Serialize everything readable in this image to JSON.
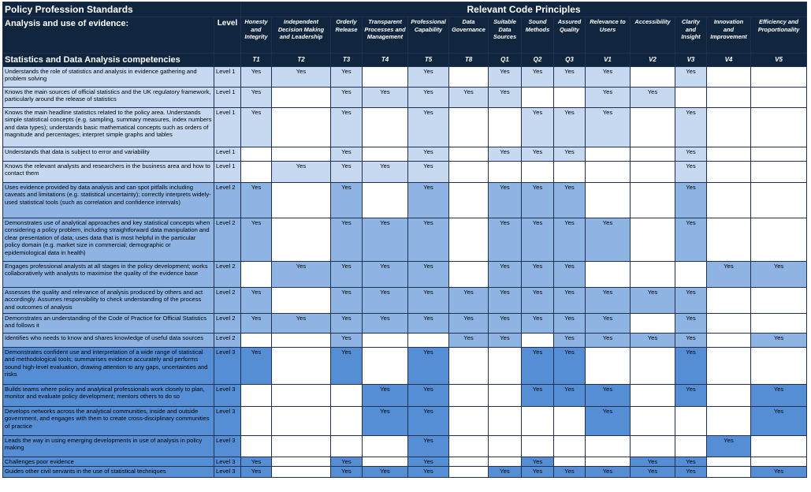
{
  "header": {
    "title": "Policy Profession Standards",
    "principles_title": "Relevant Code Principles",
    "section": "Analysis and use of evidence:",
    "level_label": "Level",
    "competency_label": "Statistics and Data Analysis competencies"
  },
  "columns": [
    {
      "name": "Honesty and Integrity",
      "code": "T1"
    },
    {
      "name": "Independent Decision Making and Leadership",
      "code": "T2"
    },
    {
      "name": "Orderly Release",
      "code": "T3"
    },
    {
      "name": "Transparent Processes and Management",
      "code": "T4"
    },
    {
      "name": "Professional Capability",
      "code": "T5"
    },
    {
      "name": "Data Governance",
      "code": "T8"
    },
    {
      "name": "Suitable Data Sources",
      "code": "Q1"
    },
    {
      "name": "Sound Methods",
      "code": "Q2"
    },
    {
      "name": "Assured Quality",
      "code": "Q3"
    },
    {
      "name": "Relevance to Users",
      "code": "V1"
    },
    {
      "name": "Accessibility",
      "code": "V2"
    },
    {
      "name": "Clarity and Insight",
      "code": "V3"
    },
    {
      "name": "Innovation and Improvement",
      "code": "V4"
    },
    {
      "name": "Efficiency and Proportionality",
      "code": "V5"
    }
  ],
  "rows": [
    {
      "text": "Understands the role of statistics and analysis in evidence gathering and problem solving",
      "level": "Level 1",
      "cells": [
        "Yes",
        "Yes",
        "Yes",
        null,
        "Yes",
        null,
        "Yes",
        "Yes",
        "Yes",
        "Yes",
        null,
        "Yes",
        null,
        null
      ]
    },
    {
      "text": "Knows the main sources of official statistics and the UK regulatory framework, particularly around the release of statistics",
      "level": "Level 1",
      "cells": [
        "Yes",
        null,
        "Yes",
        "Yes",
        "Yes",
        "Yes",
        "Yes",
        null,
        null,
        "Yes",
        "Yes",
        null,
        null,
        null
      ]
    },
    {
      "text": "Knows the main headline statistics related to the policy area. Understands simple statistical concepts (e.g. sampling, summary measures, index numbers and data types); understands basic mathematical concepts such as orders of magnitude and percentages; interpret simple graphs and tables",
      "level": "Level 1",
      "cells": [
        "Yes",
        null,
        "Yes",
        null,
        "Yes",
        null,
        null,
        "Yes",
        "Yes",
        "Yes",
        null,
        "Yes",
        null,
        null
      ]
    },
    {
      "text": "Understands that data is subject to error and variability",
      "level": "Level 1",
      "cells": [
        null,
        null,
        "Yes",
        null,
        "Yes",
        null,
        "Yes",
        "Yes",
        "Yes",
        null,
        null,
        "Yes",
        null,
        null
      ]
    },
    {
      "text": "Knows the relevant analysts and researchers in the business area and how to contact them",
      "level": "Level 1",
      "cells": [
        null,
        "Yes",
        "Yes",
        "Yes",
        "Yes",
        null,
        null,
        null,
        null,
        null,
        null,
        "Yes",
        null,
        null
      ]
    },
    {
      "text": "Uses evidence provided by data analysis and can spot pitfalls including caveats and limitations (e.g. statistical uncertainty); correctly interprets widely-used statistical tools (such as correlation and confidence intervals)",
      "level": "Level 2",
      "cells": [
        "Yes",
        null,
        "Yes",
        null,
        "Yes",
        null,
        "Yes",
        "Yes",
        "Yes",
        null,
        null,
        "Yes",
        null,
        null
      ]
    },
    {
      "text": "Demonstrates use of analytical approaches and key statistical concepts when considering a policy problem, including straightforward data manipulation and clear presentation of data; uses data that is most helpful in the particular policy domain (e.g. market size in commercial; demographic or epidemiological data in health)",
      "level": "Level 2",
      "cells": [
        "Yes",
        null,
        "Yes",
        "Yes",
        "Yes",
        null,
        "Yes",
        "Yes",
        "Yes",
        "Yes",
        null,
        "Yes",
        null,
        null
      ]
    },
    {
      "text": "Engages professional analysts at all stages in the policy development; works collaboratively with analysts to maximise the quality of the evidence base",
      "level": "Level 2",
      "cells": [
        null,
        "Yes",
        "Yes",
        "Yes",
        "Yes",
        null,
        "Yes",
        "Yes",
        "Yes",
        null,
        null,
        null,
        "Yes",
        "Yes"
      ]
    },
    {
      "text": "Assesses the quality and relevance of analysis produced by others and act accordingly. Assumes responsibility to check understanding of the process and outcomes of analysis",
      "level": "Level 2",
      "cells": [
        "Yes",
        null,
        "Yes",
        "Yes",
        "Yes",
        "Yes",
        "Yes",
        "Yes",
        "Yes",
        "Yes",
        "Yes",
        "Yes",
        null,
        null
      ]
    },
    {
      "text": "Demonstrates an understanding of the Code of Practice for Official Statistics and follows it",
      "level": "Level 2",
      "cells": [
        "Yes",
        "Yes",
        "Yes",
        "Yes",
        "Yes",
        "Yes",
        "Yes",
        "Yes",
        "Yes",
        "Yes",
        null,
        "Yes",
        null,
        null
      ]
    },
    {
      "text": "Identifies who needs to know and shares knowledge of useful data sources",
      "level": "Level 2",
      "cells": [
        null,
        null,
        "Yes",
        null,
        null,
        "Yes",
        "Yes",
        null,
        "Yes",
        "Yes",
        "Yes",
        "Yes",
        null,
        "Yes"
      ]
    },
    {
      "text": "Demonstrates confident use and interpretation of a wide range of statistical and methodological tools; summarises evidence accurately and performs sound high-level evaluation, drawing attention to any gaps, uncertainties and risks",
      "level": "Level 3",
      "cells": [
        "Yes",
        null,
        "Yes",
        null,
        "Yes",
        null,
        null,
        "Yes",
        "Yes",
        null,
        null,
        "Yes",
        null,
        null
      ]
    },
    {
      "text": "Builds teams where policy and analytical professionals work closely to plan, monitor and evaluate policy development; mentors others to do so",
      "level": "Level 3",
      "cells": [
        null,
        null,
        null,
        "Yes",
        "Yes",
        null,
        null,
        "Yes",
        "Yes",
        "Yes",
        null,
        "Yes",
        null,
        "Yes"
      ]
    },
    {
      "text": "Develops networks across the analytical communities, inside and outside government, and engages with them to create cross-disciplinary communities of practice",
      "level": "Level 3",
      "cells": [
        null,
        null,
        null,
        "Yes",
        "Yes",
        null,
        null,
        null,
        null,
        "Yes",
        null,
        null,
        null,
        "Yes"
      ]
    },
    {
      "text": "Leads the way in using emerging developments in use of analysis in policy making",
      "level": "Level 3",
      "cells": [
        null,
        null,
        null,
        null,
        "Yes",
        null,
        null,
        null,
        null,
        null,
        null,
        null,
        "Yes",
        null
      ]
    },
    {
      "text": "Challenges poor evidence",
      "level": "Level 3",
      "cells": [
        "Yes",
        null,
        "Yes",
        null,
        "Yes",
        null,
        null,
        "Yes",
        null,
        null,
        "Yes",
        "Yes",
        null,
        null
      ]
    },
    {
      "text": "Guides other civil servants in the use of statistical techniques",
      "level": "Level 3",
      "cells": [
        "Yes",
        null,
        "Yes",
        "Yes",
        "Yes",
        null,
        "Yes",
        "Yes",
        "Yes",
        "Yes",
        "Yes",
        "Yes",
        null,
        "Yes"
      ]
    }
  ]
}
